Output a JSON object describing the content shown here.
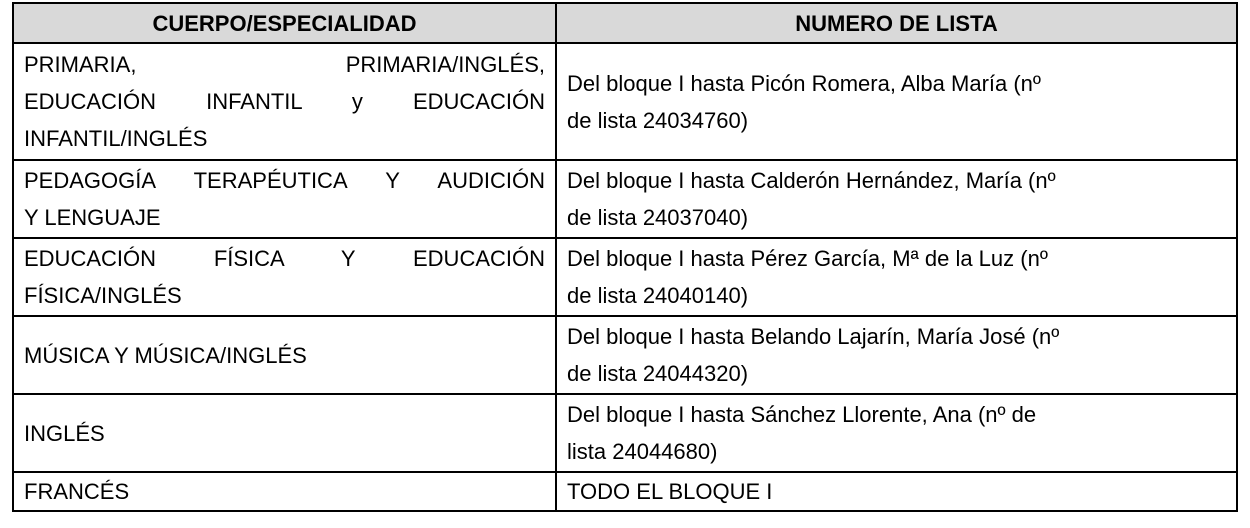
{
  "header": {
    "col1": "CUERPO/ESPECIALIDAD",
    "col2": "NUMERO DE LISTA"
  },
  "rows": [
    {
      "especialidad": [
        "PRIMARIA, PRIMARIA/INGLÉS,",
        "EDUCACIÓN INFANTIL y EDUCACIÓN",
        "INFANTIL/INGLÉS"
      ],
      "lista": [
        "Del bloque I hasta Picón Romera, Alba María (nº",
        "de lista 24034760)"
      ]
    },
    {
      "especialidad": [
        "PEDAGOGÍA TERAPÉUTICA Y AUDICIÓN",
        "Y LENGUAJE"
      ],
      "lista": [
        "Del bloque I hasta Calderón Hernández, María (nº",
        "de lista 24037040)"
      ]
    },
    {
      "especialidad": [
        "EDUCACIÓN FÍSICA Y EDUCACIÓN",
        "FÍSICA/INGLÉS"
      ],
      "lista": [
        "Del bloque I hasta Pérez García, Mª de la Luz (nº",
        "de lista 24040140)"
      ]
    },
    {
      "especialidad": [
        "MÚSICA Y MÚSICA/INGLÉS"
      ],
      "lista": [
        "Del bloque I hasta Belando Lajarín, María José (nº",
        "de lista 24044320)"
      ]
    },
    {
      "especialidad": [
        "INGLÉS"
      ],
      "lista": [
        "Del bloque I hasta Sánchez Llorente, Ana (nº de",
        "lista 24044680)"
      ]
    },
    {
      "especialidad": [
        "FRANCÉS"
      ],
      "lista": [
        "TODO EL BLOQUE I"
      ]
    }
  ],
  "colors": {
    "header_bg": "#d9d9d9",
    "border": "#000000"
  }
}
